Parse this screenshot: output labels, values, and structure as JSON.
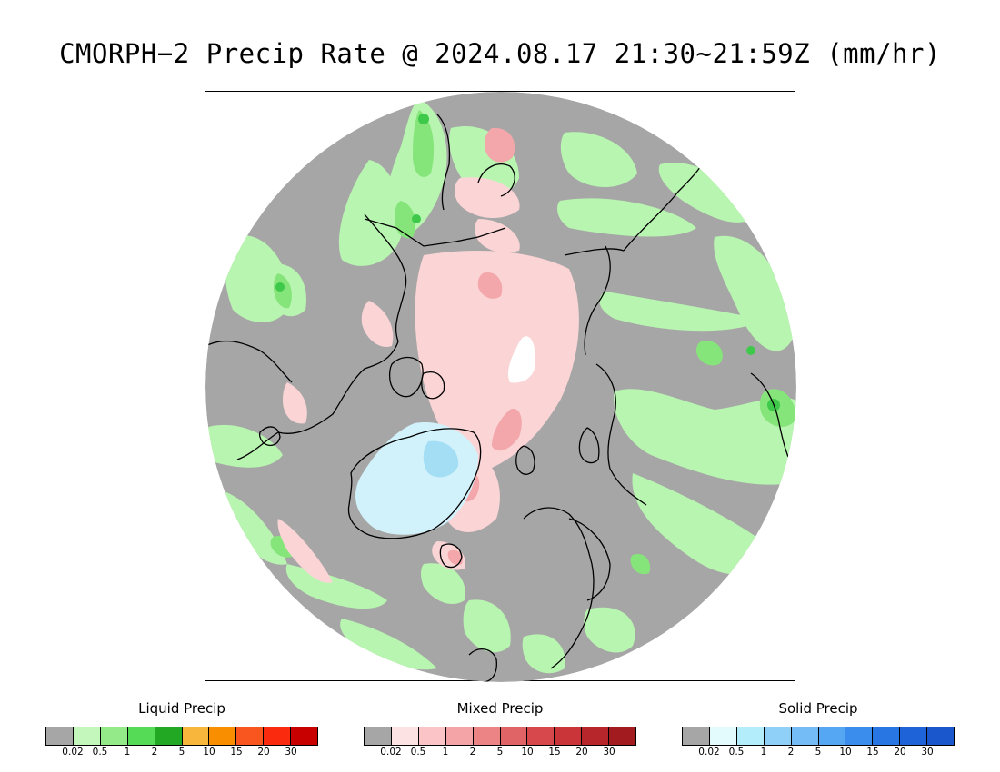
{
  "title": "CMORPH−2 Precip Rate @ 2024.08.17 21:30~21:59Z (mm/hr)",
  "map": {
    "projection": "north-polar-stereographic",
    "colors": {
      "background_gray": "#a6a6a6",
      "coast": "#000000",
      "liquid_light": "#b8f5b0",
      "liquid_mid": "#86e57a",
      "liquid_dark": "#3ec94a",
      "mixed_light": "#fbd4d6",
      "mixed_mid": "#f3a7aa",
      "solid_light": "#d2f2fb",
      "solid_mid": "#a4def5"
    }
  },
  "legends": [
    {
      "title": "Liquid Precip",
      "ticks": [
        "0.02",
        "0.5",
        "1",
        "2",
        "5",
        "10",
        "15",
        "20",
        "30"
      ],
      "colors": [
        "#a6a6a6",
        "#c4f7bb",
        "#94ea88",
        "#55db55",
        "#22a822",
        "#f8b73c",
        "#f98f00",
        "#f9551e",
        "#f92a0d",
        "#c80000"
      ]
    },
    {
      "title": "Mixed Precip",
      "ticks": [
        "0.02",
        "0.5",
        "1",
        "2",
        "5",
        "10",
        "15",
        "20",
        "30"
      ],
      "colors": [
        "#a6a6a6",
        "#fde2e3",
        "#fbc5c7",
        "#f4a3a6",
        "#ec8486",
        "#e06366",
        "#d6484b",
        "#c93538",
        "#b7262a",
        "#a21c1f"
      ]
    },
    {
      "title": "Solid Precip",
      "ticks": [
        "0.02",
        "0.5",
        "1",
        "2",
        "5",
        "10",
        "15",
        "20",
        "30"
      ],
      "colors": [
        "#a6a6a6",
        "#e3fbfd",
        "#b3ecfb",
        "#8fd0f8",
        "#73bcf6",
        "#55a6f3",
        "#3b8ded",
        "#2876e3",
        "#1f63d8",
        "#1a56cc"
      ]
    }
  ]
}
